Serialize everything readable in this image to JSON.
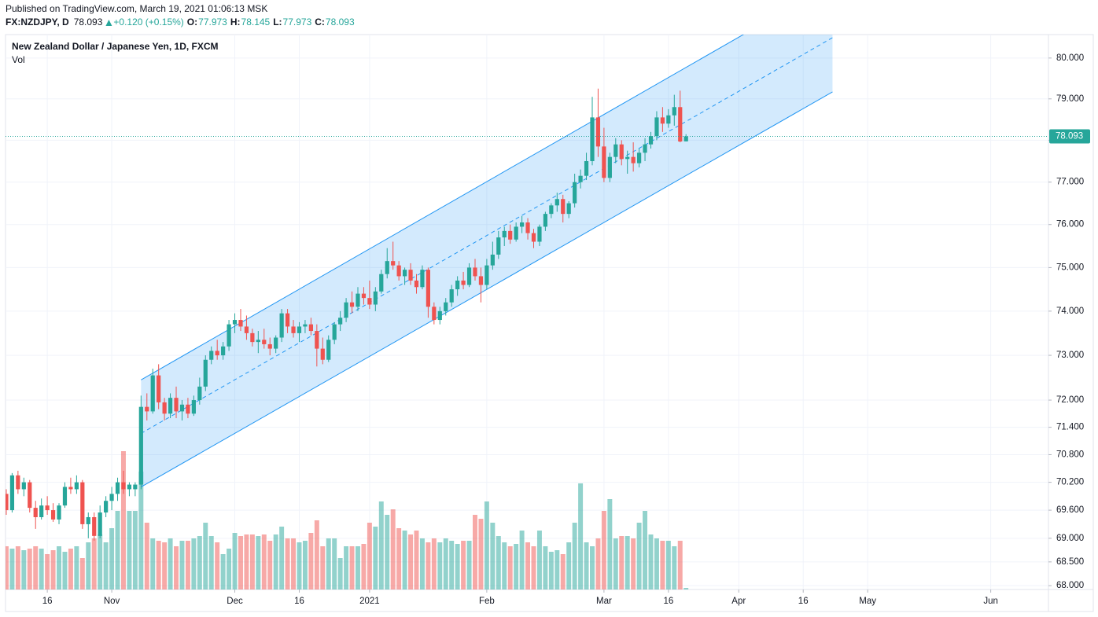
{
  "header": {
    "published": "Published on TradingView.com, March 19, 2021 01:06:13 MSK",
    "symbol": "FX:NZDJPY, D",
    "change": "+0.120 (+0.15%)",
    "open_label": "O:",
    "high_label": "H:",
    "low_label": "L:",
    "close_label": "C:"
  },
  "chart_data": {
    "type": "candlestick",
    "title": "New Zealand Dollar / Japanese Yen, 1D, FXCM",
    "subtitle": "Vol",
    "up_color": "#26a69a",
    "down_color": "#ef5350",
    "log_scale": true,
    "grid": true,
    "xlim": [
      -0.13,
      177.85
    ],
    "xticks": [
      {
        "value": 7,
        "label": "16"
      },
      {
        "value": 18,
        "label": "Nov"
      },
      {
        "value": 39,
        "label": "Dec"
      },
      {
        "value": 50,
        "label": "16"
      },
      {
        "value": 62,
        "label": "2021"
      },
      {
        "value": 82,
        "label": "Feb"
      },
      {
        "value": 102,
        "label": "Mar"
      },
      {
        "value": 113,
        "label": "16"
      },
      {
        "value": 125,
        "label": "Apr"
      },
      {
        "value": 136,
        "label": "16"
      },
      {
        "value": 147,
        "label": "May"
      },
      {
        "value": 168,
        "label": "Jun"
      }
    ],
    "ylim": [
      67.92,
      80.58
    ],
    "yticks": [
      {
        "value": 80,
        "label": "80.000"
      },
      {
        "value": 79,
        "label": "79.000"
      },
      {
        "value": 78,
        "label": "78.000"
      },
      {
        "value": 77,
        "label": "77.000"
      },
      {
        "value": 76,
        "label": "76.000"
      },
      {
        "value": 75,
        "label": "75.000"
      },
      {
        "value": 74,
        "label": "74.000"
      },
      {
        "value": 73,
        "label": "73.000"
      },
      {
        "value": 72,
        "label": "72.000"
      },
      {
        "value": 71.4,
        "label": "71.400"
      },
      {
        "value": 70.8,
        "label": "70.800"
      },
      {
        "value": 70.2,
        "label": "70.200"
      },
      {
        "value": 69.6,
        "label": "69.600"
      },
      {
        "value": 69,
        "label": "69.000"
      },
      {
        "value": 68.5,
        "label": "68.500"
      },
      {
        "value": 68,
        "label": "68.000"
      }
    ],
    "channel": {
      "start": 23,
      "end": 141,
      "lower": [
        70.1,
        79.17
      ],
      "upper": [
        72.45,
        81.86
      ],
      "color": "#2196f3"
    },
    "open": [
      69.95,
      69.6,
      70.35,
      70.05,
      70.2,
      69.65,
      69.45,
      69.7,
      69.6,
      69.4,
      69.7,
      70.1,
      70.05,
      70.2,
      69.3,
      69.45,
      69.05,
      69.55,
      69.8,
      69.95,
      70.2,
      70.05,
      70.05,
      70.15,
      71.85,
      71.75,
      72.55,
      71.95,
      71.7,
      72.05,
      71.75,
      71.9,
      71.7,
      72.0,
      72.3,
      72.9,
      73.1,
      73.0,
      73.2,
      73.7,
      73.8,
      73.65,
      73.5,
      73.3,
      73.35,
      73.25,
      73.15,
      73.4,
      73.95,
      73.65,
      73.5,
      73.65,
      73.7,
      73.55,
      73.15,
      72.9,
      73.35,
      73.7,
      73.85,
      74.2,
      74.1,
      74.4,
      74.3,
      74.15,
      74.45,
      74.85,
      75.15,
      75.05,
      74.8,
      74.95,
      74.7,
      74.55,
      74.95,
      74.1,
      73.8,
      74.0,
      74.2,
      74.5,
      74.7,
      74.6,
      75.0,
      74.8,
      74.6,
      75.05,
      75.3,
      75.7,
      75.85,
      75.65,
      75.95,
      76.05,
      75.8,
      75.6,
      75.95,
      76.25,
      76.45,
      76.6,
      76.25,
      76.5,
      77.0,
      77.15,
      77.5,
      78.55,
      77.85,
      77.1,
      77.6,
      77.9,
      77.55,
      77.6,
      77.45,
      77.7,
      77.9,
      78.1,
      78.55,
      78.4,
      78.6,
      78.8,
      77.973
    ],
    "high": [
      70.05,
      70.4,
      70.45,
      70.3,
      70.25,
      69.8,
      69.85,
      69.9,
      69.75,
      69.75,
      70.2,
      70.3,
      70.35,
      70.25,
      69.55,
      69.55,
      69.7,
      69.9,
      70.1,
      70.3,
      70.45,
      70.2,
      70.2,
      72.1,
      72.15,
      72.7,
      72.8,
      72.05,
      72.15,
      72.3,
      72.0,
      72.05,
      72.1,
      72.5,
      73.0,
      73.2,
      73.35,
      73.3,
      73.8,
      73.95,
      74.05,
      73.9,
      73.6,
      73.55,
      73.6,
      73.4,
      73.45,
      74.05,
      74.05,
      73.8,
      73.75,
      73.8,
      73.85,
      73.7,
      73.4,
      73.45,
      73.75,
      74.0,
      74.3,
      74.45,
      74.55,
      74.55,
      74.7,
      74.55,
      74.95,
      75.45,
      75.6,
      75.15,
      75.0,
      75.1,
      74.85,
      75.05,
      75.0,
      74.2,
      74.1,
      74.3,
      74.6,
      74.8,
      74.9,
      75.1,
      75.2,
      75.0,
      75.2,
      75.6,
      75.85,
      75.95,
      76.0,
      76.05,
      76.2,
      76.15,
      75.9,
      76.0,
      76.3,
      76.5,
      76.75,
      76.7,
      76.55,
      77.2,
      77.3,
      77.7,
      79.05,
      79.25,
      78.3,
      77.7,
      78.05,
      78.0,
      77.75,
      77.95,
      77.8,
      78.05,
      78.2,
      78.7,
      78.8,
      78.75,
      79.1,
      79.2,
      78.145
    ],
    "low": [
      69.5,
      69.55,
      69.95,
      69.9,
      69.55,
      69.2,
      69.4,
      69.5,
      69.35,
      69.3,
      69.65,
      69.95,
      69.95,
      69.2,
      69.0,
      68.95,
      69.0,
      69.45,
      69.6,
      69.8,
      69.95,
      69.9,
      69.9,
      70.05,
      71.55,
      71.7,
      71.8,
      71.55,
      71.6,
      71.6,
      71.55,
      71.6,
      71.65,
      71.9,
      72.2,
      72.8,
      72.9,
      72.9,
      73.1,
      73.5,
      73.55,
      73.35,
      73.2,
      73.05,
      73.15,
      73.0,
      73.05,
      73.3,
      73.5,
      73.4,
      73.3,
      73.5,
      73.45,
      72.75,
      72.8,
      72.85,
      73.25,
      73.55,
      73.75,
      73.95,
      74.0,
      74.15,
      74.05,
      74.0,
      74.4,
      74.75,
      74.95,
      74.7,
      74.6,
      74.6,
      74.4,
      74.5,
      73.85,
      73.7,
      73.7,
      73.9,
      74.1,
      74.35,
      74.5,
      74.55,
      74.7,
      74.2,
      74.5,
      74.95,
      75.2,
      75.5,
      75.55,
      75.6,
      75.8,
      75.65,
      75.45,
      75.5,
      75.85,
      76.15,
      76.3,
      76.05,
      76.15,
      76.4,
      76.85,
      77.05,
      77.4,
      77.6,
      77.0,
      77.0,
      77.45,
      77.4,
      77.2,
      77.25,
      77.35,
      77.5,
      77.8,
      78.0,
      78.2,
      78.3,
      78.35,
      77.95,
      77.973
    ],
    "close": [
      69.6,
      70.35,
      70.05,
      70.2,
      69.65,
      69.45,
      69.7,
      69.6,
      69.4,
      69.7,
      70.1,
      70.05,
      70.2,
      69.3,
      69.45,
      69.05,
      69.55,
      69.8,
      69.95,
      70.2,
      70.05,
      70.15,
      70.15,
      71.85,
      71.75,
      72.55,
      71.95,
      71.7,
      72.05,
      71.75,
      71.9,
      71.7,
      72.0,
      72.3,
      72.9,
      73.1,
      73.0,
      73.2,
      73.7,
      73.8,
      73.65,
      73.5,
      73.3,
      73.35,
      73.25,
      73.15,
      73.4,
      73.95,
      73.65,
      73.5,
      73.65,
      73.7,
      73.55,
      73.15,
      72.9,
      73.35,
      73.7,
      73.85,
      74.2,
      74.1,
      74.4,
      74.3,
      74.15,
      74.45,
      74.85,
      75.15,
      75.05,
      74.8,
      74.95,
      74.7,
      74.55,
      74.95,
      74.1,
      73.8,
      74.0,
      74.2,
      74.5,
      74.7,
      74.6,
      75.0,
      74.8,
      74.6,
      75.05,
      75.3,
      75.7,
      75.85,
      75.65,
      75.95,
      76.05,
      75.8,
      75.6,
      75.95,
      76.25,
      76.45,
      76.6,
      76.25,
      76.5,
      77.0,
      77.15,
      77.5,
      78.55,
      77.85,
      77.1,
      77.6,
      77.9,
      77.55,
      77.6,
      77.45,
      77.7,
      77.9,
      78.1,
      78.55,
      78.4,
      78.6,
      78.8,
      77.97,
      78.093
    ],
    "volume": [
      55,
      52,
      55,
      50,
      52,
      55,
      52,
      45,
      50,
      55,
      48,
      52,
      55,
      40,
      60,
      65,
      70,
      60,
      78,
      100,
      176,
      100,
      100,
      150,
      85,
      65,
      62,
      60,
      65,
      55,
      62,
      62,
      65,
      68,
      85,
      68,
      60,
      45,
      52,
      72,
      68,
      70,
      70,
      68,
      70,
      62,
      70,
      80,
      65,
      65,
      60,
      62,
      72,
      88,
      55,
      65,
      65,
      40,
      55,
      55,
      55,
      58,
      85,
      80,
      112,
      95,
      102,
      78,
      75,
      70,
      75,
      65,
      60,
      65,
      60,
      65,
      62,
      58,
      62,
      62,
      95,
      90,
      112,
      85,
      68,
      60,
      55,
      58,
      75,
      60,
      55,
      75,
      55,
      48,
      50,
      45,
      60,
      85,
      135,
      60,
      55,
      65,
      100,
      115,
      65,
      68,
      68,
      65,
      85,
      100,
      70,
      65,
      62,
      62,
      55,
      62,
      2
    ]
  }
}
